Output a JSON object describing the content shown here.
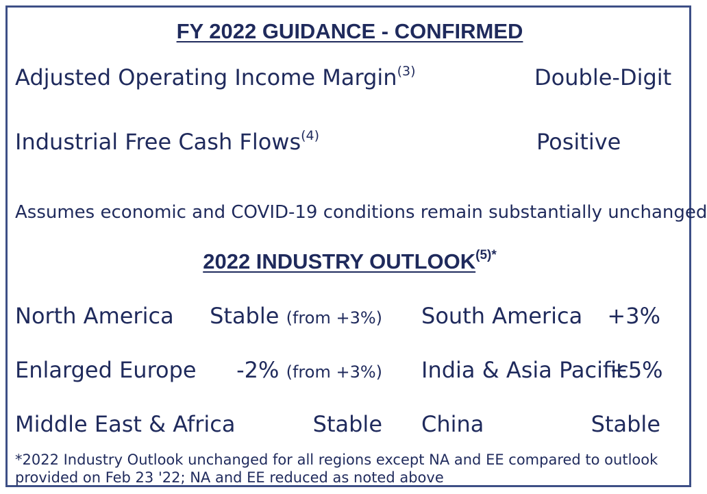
{
  "guidance": {
    "title": "FY 2022 GUIDANCE - CONFIRMED",
    "items": [
      {
        "label": "Adjusted Operating Income Margin",
        "note": "(3)",
        "value": "Double-Digit"
      },
      {
        "label": "Industrial Free Cash Flows",
        "note": "(4)",
        "value": "Positive"
      }
    ],
    "assumption": "Assumes economic and COVID-19 conditions remain substantially unchanged"
  },
  "outlook": {
    "title": "2022 INDUSTRY OUTLOOK",
    "title_note": "(5)*",
    "regions": [
      {
        "name": "North America",
        "value": "Stable",
        "detail": "(from +3%)"
      },
      {
        "name": "South America",
        "value": "+3%",
        "detail": ""
      },
      {
        "name": "Enlarged Europe",
        "value": "-2%",
        "detail": "(from +3%)"
      },
      {
        "name": "India & Asia Pacific",
        "value": "+5%",
        "detail": ""
      },
      {
        "name": "Middle East & Africa",
        "value": "Stable",
        "detail": ""
      },
      {
        "name": "China",
        "value": "Stable",
        "detail": ""
      }
    ],
    "footnote": "*2022 Industry Outlook unchanged for all regions except NA and EE compared to outlook provided on Feb 23 '22; NA and EE reduced as noted above"
  },
  "colors": {
    "text": "#1f2a5c",
    "border": "#3d4f86"
  }
}
